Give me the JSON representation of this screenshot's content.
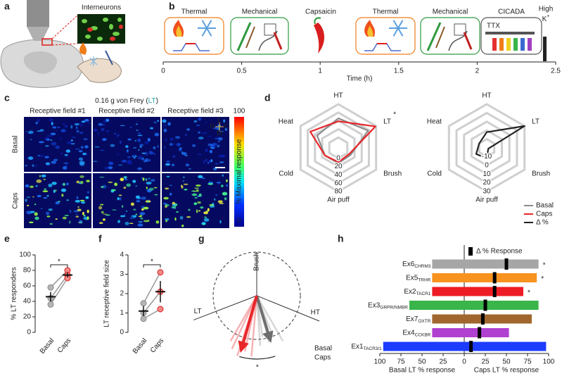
{
  "panel_labels": [
    "a",
    "b",
    "c",
    "d",
    "e",
    "f",
    "g",
    "h"
  ],
  "a": {
    "inset_label": "Interneurons"
  },
  "b": {
    "steps": [
      {
        "name": "Thermal",
        "color": "#f07d1a"
      },
      {
        "name": "Mechanical",
        "color": "#2e9a3e"
      },
      {
        "name": "Capsaicin",
        "color": "#e0201b"
      },
      {
        "name": "Thermal",
        "color": "#f07d1a"
      },
      {
        "name": "Mechanical",
        "color": "#2e9a3e"
      },
      {
        "name": "CICADA",
        "color": "#555555"
      }
    ],
    "ttx": "TTX",
    "high_k": [
      "High",
      "K"
    ],
    "high_k_sup": "+",
    "axis_label": "Time (h)",
    "xlim": [
      0,
      2.5
    ],
    "xticks": [
      0,
      0.5,
      1,
      1.5,
      2,
      2.5
    ]
  },
  "c": {
    "title_parts": [
      "0.16 g von Frey (",
      "LT",
      ")"
    ],
    "columns": [
      "Receptive field #1",
      "Receptive field #2",
      "Receptive field #3"
    ],
    "rows": [
      "Basal",
      "Caps"
    ],
    "row_colors": [
      "#888888",
      "#e0201b"
    ],
    "colorbar_label": "% Maximal response",
    "colorbar_lim": [
      0,
      100
    ],
    "colorbar_ticks": [
      100,
      0
    ],
    "compass": {
      "up": "L",
      "left": "R",
      "right": "C",
      "down": "M"
    }
  },
  "chart_data": [
    {
      "type": "radar",
      "axes": [
        "HT",
        "LT",
        "Brush",
        "Air puff",
        "Cold",
        "Heat"
      ],
      "axis_colors": [
        "#86cf6e",
        "#25aab0",
        "#8a6fcf",
        "#222222",
        "#1a1acc",
        "#e0201b"
      ],
      "rlim": [
        -25,
        80
      ],
      "rticks": [
        0,
        20,
        40,
        60,
        80
      ],
      "series": [
        {
          "name": "Basal",
          "color": "#8c8c8c",
          "values": [
            46,
            58,
            9,
            12,
            12,
            34
          ]
        },
        {
          "name": "Caps",
          "color": "#e8262a",
          "values": [
            39,
            78,
            5,
            9,
            12,
            53
          ]
        }
      ],
      "annotation": "*"
    },
    {
      "type": "radar",
      "axes": [
        "HT",
        "LT",
        "Brush",
        "Air puff",
        "Cold",
        "Heat"
      ],
      "axis_colors": [
        "#86cf6e",
        "#25aab0",
        "#8a6fcf",
        "#222222",
        "#1a1acc",
        "#e0201b"
      ],
      "rlim": [
        -20,
        30
      ],
      "rticks": [
        -10,
        0,
        10,
        20,
        30
      ],
      "series": [
        {
          "name": "Δ %",
          "color": "#222222",
          "values": [
            -2,
            30,
            -18,
            -8,
            -6,
            -10
          ]
        }
      ]
    },
    {
      "type": "paired",
      "ylabel": "% LT responders",
      "ylim": [
        0,
        100
      ],
      "yticks": [
        0,
        20,
        40,
        60,
        80,
        100
      ],
      "groups": [
        {
          "name": "Basal",
          "color": "#888888",
          "values": [
            58,
            44,
            36
          ],
          "mean": 46,
          "sem": 6
        },
        {
          "name": "Caps",
          "color": "#e0201b",
          "values": [
            80,
            74,
            70
          ],
          "mean": 74,
          "sem": 3
        }
      ],
      "annotation": "*"
    },
    {
      "type": "paired",
      "ylabel": "LT receptive field size",
      "ylim": [
        0,
        4
      ],
      "yticks": [
        0,
        1,
        2,
        3,
        4
      ],
      "groups": [
        {
          "name": "Basal",
          "color": "#888888",
          "values": [
            1.5,
            1.0,
            0.7
          ],
          "mean": 1.1,
          "sem": 0.25
        },
        {
          "name": "Caps",
          "color": "#e0201b",
          "values": [
            3.1,
            2.1,
            1.2
          ],
          "mean": 2.1,
          "sem": 0.55
        }
      ],
      "annotation": "*"
    },
    {
      "type": "polar",
      "axes": [
        {
          "label": "Brush",
          "color": "#8a6fcf",
          "angle": 0
        },
        {
          "label": "LT",
          "color": "#25aab0",
          "angle": 249
        },
        {
          "label": "HT",
          "color": "#86cf6e",
          "angle": 112
        }
      ],
      "series": [
        {
          "name": "Basal",
          "color": "#8c8c8c",
          "angles": [
            150,
            158,
            165,
            172,
            176
          ],
          "lengths": [
            1.2,
            1.0,
            1.1,
            0.95,
            1.15
          ],
          "mean_angle": 163,
          "mean_length": 1.0
        },
        {
          "name": "Caps",
          "color": "#e8262a",
          "angles": [
            185,
            192,
            198,
            205,
            210
          ],
          "lengths": [
            1.4,
            1.3,
            1.45,
            1.35,
            1.2
          ],
          "mean_angle": 196,
          "mean_length": 1.23
        }
      ],
      "annotation": "*"
    },
    {
      "type": "diverging-bar",
      "categories": [
        "Ex6",
        "Ex5",
        "Ex2",
        "Ex3",
        "Ex7",
        "Ex4",
        "Ex1"
      ],
      "category_subscripts": [
        "CHRM3",
        "TRHR",
        "TACR1",
        "GRPR/NMBR",
        "OXTR",
        "CCKBR",
        "TACR3/1"
      ],
      "colors": [
        "#a6a6a6",
        "#f7931e",
        "#ed1c24",
        "#39b54a",
        "#a0662d",
        "#b040d0",
        "#1c3cff"
      ],
      "series": [
        {
          "name": "Basal LT % response",
          "color": "#888888",
          "values": [
            -38,
            -38,
            -38,
            -65,
            -38,
            -38,
            -96
          ]
        },
        {
          "name": "Caps LT % response",
          "color": "#e0201b",
          "values": [
            88,
            86,
            70,
            88,
            80,
            53,
            97
          ]
        },
        {
          "name": "Δ % Response",
          "color": "#000000",
          "values": [
            50,
            36,
            36,
            25,
            22,
            18,
            8
          ]
        }
      ],
      "annotations": [
        "*",
        "*",
        "*",
        null,
        null,
        null,
        null
      ],
      "xlim": [
        -100,
        100
      ],
      "xticks": [
        {
          "value": -100,
          "label": "100"
        },
        {
          "value": -75,
          "label": "75"
        },
        {
          "value": -50,
          "label": "50"
        },
        {
          "value": -25,
          "label": "25"
        },
        0,
        25,
        50,
        75,
        100
      ]
    }
  ]
}
